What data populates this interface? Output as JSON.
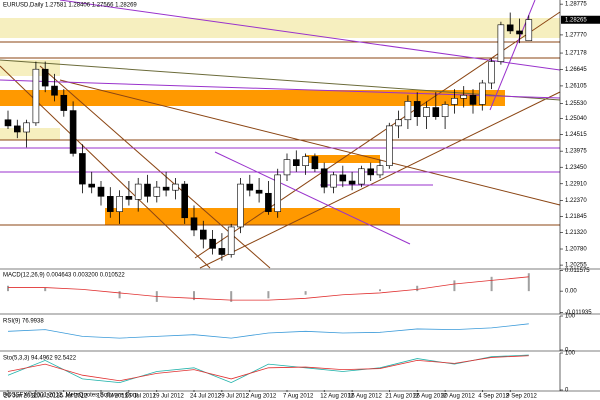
{
  "chart_data": [
    {
      "type": "candlestick",
      "title": "EURUSD,Daily 1.27581 1.28406 1.27566 1.28269",
      "categories": [
        "26 Jun 2012",
        null,
        null,
        "3 Jul 2012",
        null,
        null,
        "5 Jul 2012",
        null,
        null,
        null,
        "10 Jul 2012",
        null,
        null,
        "15 Jul 2012",
        null,
        null,
        "19 Jul 2012",
        null,
        null,
        null,
        "24 Jul 2012",
        null,
        null,
        "29 Jul 2012",
        null,
        null,
        "2 Aug 2012",
        null,
        null,
        null,
        "7 Aug 2012",
        null,
        null,
        null,
        "12 Aug 2012",
        null,
        null,
        "16 Aug 2012",
        null,
        null,
        null,
        "21 Aug 2012",
        null,
        null,
        "26 Aug 2012",
        null,
        null,
        "30 Aug 2012",
        null,
        null,
        null,
        "4 Sep 2012",
        null,
        null,
        "9 Sep 2012",
        null,
        null
      ],
      "open": [
        1.25,
        1.248,
        1.246,
        1.249,
        1.2665,
        1.261,
        1.258,
        1.253,
        1.239,
        1.229,
        1.228,
        1.225,
        1.22,
        1.225,
        1.224,
        1.229,
        1.225,
        1.228,
        1.227,
        1.229,
        1.218,
        1.214,
        1.211,
        1.208,
        1.206,
        1.215,
        1.229,
        1.227,
        1.226,
        1.22,
        1.232,
        1.237,
        1.235,
        1.238,
        1.234,
        1.228,
        1.232,
        1.23,
        1.229,
        1.234,
        1.232,
        1.235,
        1.248,
        1.25,
        1.256,
        1.251,
        1.254,
        1.251,
        1.255,
        1.257,
        1.258,
        1.255,
        1.262,
        1.269,
        1.281,
        1.279,
        1.2758
      ],
      "high": [
        1.253,
        1.25,
        1.25,
        1.269,
        1.269,
        1.265,
        1.26,
        1.256,
        1.242,
        1.233,
        1.23,
        1.228,
        1.227,
        1.23,
        1.231,
        1.232,
        1.23,
        1.233,
        1.231,
        1.23,
        1.222,
        1.217,
        1.214,
        1.213,
        1.216,
        1.231,
        1.232,
        1.231,
        1.23,
        1.234,
        1.239,
        1.24,
        1.239,
        1.239,
        1.236,
        1.233,
        1.235,
        1.233,
        1.235,
        1.236,
        1.237,
        1.249,
        1.253,
        1.258,
        1.259,
        1.256,
        1.259,
        1.256,
        1.26,
        1.261,
        1.26,
        1.263,
        1.27,
        1.282,
        1.285,
        1.283,
        1.2841
      ],
      "low": [
        1.247,
        1.244,
        1.241,
        1.248,
        1.259,
        1.256,
        1.251,
        1.238,
        1.226,
        1.226,
        1.222,
        1.218,
        1.216,
        1.222,
        1.22,
        1.223,
        1.223,
        1.225,
        1.224,
        1.216,
        1.212,
        1.208,
        1.206,
        1.204,
        1.205,
        1.213,
        1.225,
        1.223,
        1.219,
        1.218,
        1.23,
        1.233,
        1.232,
        1.233,
        1.226,
        1.226,
        1.228,
        1.227,
        1.228,
        1.23,
        1.231,
        1.234,
        1.244,
        1.247,
        1.248,
        1.247,
        1.25,
        1.247,
        1.252,
        1.254,
        1.252,
        1.253,
        1.26,
        1.268,
        1.278,
        1.275,
        1.2757
      ],
      "close": [
        1.248,
        1.246,
        1.249,
        1.2665,
        1.261,
        1.258,
        1.253,
        1.239,
        1.229,
        1.228,
        1.225,
        1.22,
        1.225,
        1.224,
        1.229,
        1.225,
        1.228,
        1.227,
        1.229,
        1.218,
        1.214,
        1.211,
        1.208,
        1.206,
        1.215,
        1.229,
        1.227,
        1.226,
        1.22,
        1.232,
        1.237,
        1.235,
        1.238,
        1.234,
        1.228,
        1.232,
        1.23,
        1.229,
        1.234,
        1.232,
        1.235,
        1.248,
        1.25,
        1.256,
        1.251,
        1.254,
        1.251,
        1.255,
        1.257,
        1.258,
        1.255,
        1.262,
        1.269,
        1.281,
        1.279,
        1.278,
        1.2827
      ],
      "last_price": 1.28265,
      "ylim": [
        1.2016,
        1.2891
      ],
      "yticks": [
        1.28775,
        {
          "value": 1.2777,
          "label": "1.27770"
        },
        1.27178,
        1.26645,
        1.26105,
        {
          "value": 1.2553,
          "label": "1.25530"
        },
        {
          "value": 1.2504,
          "label": "1.25040"
        },
        1.24515,
        1.23975,
        {
          "value": 1.2345,
          "label": "1.23450"
        },
        {
          "value": 1.2291,
          "label": "1.22910"
        },
        {
          "value": 1.2237,
          "label": "1.22370"
        },
        1.21845,
        {
          "value": 1.2132,
          "label": "1.21320"
        },
        {
          "value": 1.2078,
          "label": "1.20780"
        },
        1.20255
      ]
    },
    {
      "type": "macd",
      "title": "MACD(12,26,9) 0.004643 0.003200 0.010522",
      "x": [
        0,
        4,
        8,
        12,
        16,
        20,
        24,
        28,
        32,
        36,
        40,
        44,
        48,
        52,
        56
      ],
      "values": [
        0.003,
        0.002,
        0.0,
        -0.004,
        -0.006,
        -0.005,
        -0.006,
        -0.004,
        -0.002,
        0.0,
        0.001,
        0.003,
        0.006,
        0.008,
        0.01
      ],
      "signal": [
        0.002,
        0.002,
        0.001,
        -0.001,
        -0.003,
        -0.004,
        -0.005,
        -0.005,
        -0.004,
        -0.002,
        -0.001,
        0.001,
        0.004,
        0.006,
        0.008
      ],
      "color": "#a0a0a0",
      "signal_color": "#e03030",
      "ylim": [
        -0.0122,
        0.0118
      ],
      "yticks": [
        0.011575,
        {
          "value": 0,
          "label": "0.00"
        },
        -0.011935
      ]
    },
    {
      "type": "line",
      "title": "RSI(9) 76.9938",
      "x": [
        0,
        4,
        8,
        12,
        16,
        20,
        24,
        28,
        32,
        36,
        40,
        44,
        48,
        52,
        56
      ],
      "series": [
        {
          "color": "#3a9ad9",
          "values": [
            55,
            60,
            40,
            35,
            40,
            45,
            35,
            50,
            55,
            50,
            52,
            62,
            60,
            65,
            77
          ]
        }
      ],
      "ylim": [
        0,
        100
      ],
      "yticks": [
        100,
        0
      ]
    },
    {
      "type": "line",
      "title": "Sto(5,3,3) 94.4962 92.5422",
      "x": [
        0,
        4,
        8,
        12,
        16,
        20,
        24,
        28,
        32,
        36,
        40,
        44,
        48,
        52,
        56
      ],
      "series": [
        {
          "color": "#20b2aa",
          "values": [
            40,
            80,
            30,
            20,
            50,
            60,
            20,
            70,
            60,
            50,
            60,
            85,
            70,
            90,
            94.5
          ]
        },
        {
          "color": "#e03030",
          "values": [
            50,
            70,
            40,
            25,
            45,
            55,
            30,
            60,
            62,
            55,
            58,
            80,
            72,
            88,
            92.5
          ]
        }
      ],
      "ylim": [
        0,
        100
      ],
      "yticks": [
        100,
        0
      ]
    }
  ],
  "footer": "BOSSFX© 2001-2012, MetaQuotes Software Corp."
}
